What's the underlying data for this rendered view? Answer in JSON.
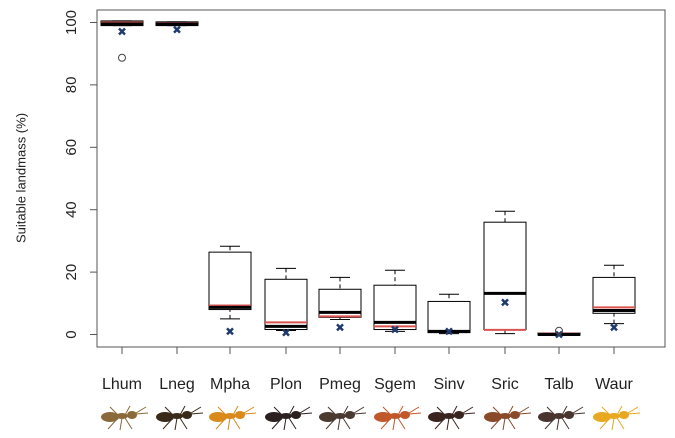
{
  "chart_data": {
    "type": "box",
    "y_label": "Suitable landmass (%)",
    "categories": [
      "Lhum",
      "Lneg",
      "Mpha",
      "Plon",
      "Pmeg",
      "Sgem",
      "Sinv",
      "Sric",
      "Talb",
      "Waur"
    ],
    "whisker_low": [
      99,
      99,
      5,
      1.3,
      4.8,
      1,
      0.3,
      0.3,
      -0.3,
      3.5
    ],
    "q1": [
      99,
      99,
      8,
      1.6,
      5.5,
      1.6,
      0.6,
      1.6,
      -0.2,
      6.8
    ],
    "median": [
      99.5,
      99.5,
      8.7,
      2.6,
      7.1,
      3.9,
      1,
      13.2,
      0,
      7.7
    ],
    "red_line": [
      100,
      99.8,
      9.3,
      3.9,
      5.8,
      2.6,
      1,
      1.5,
      0.3,
      8.7
    ],
    "q3": [
      100.5,
      100.2,
      26.4,
      17.7,
      14.5,
      15.8,
      10.6,
      36,
      0.5,
      18.3
    ],
    "whisker_high": [
      100.5,
      100.2,
      28.3,
      21.2,
      18.3,
      20.6,
      12.9,
      39.5,
      0.5,
      22.2
    ],
    "cross": [
      97.1,
      97.7,
      1,
      0.6,
      2.3,
      1.6,
      1,
      10.3,
      0,
      2.3
    ],
    "outliers": [
      [
        88.7
      ],
      [],
      [],
      [],
      [],
      [],
      [],
      [],
      [
        1.2
      ],
      []
    ],
    "ylim": [
      -4,
      104
    ],
    "yticks": [
      0,
      20,
      40,
      60,
      80,
      100
    ],
    "box_color": "#000000",
    "median_color": "#000000",
    "red_color": "#d9534f",
    "cross_color": "#1f3a6e"
  }
}
